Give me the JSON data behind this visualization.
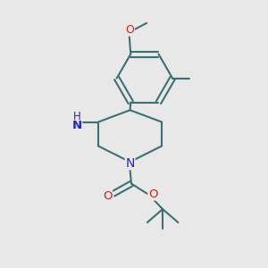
{
  "bg_color": "#e8e8e8",
  "bond_color": "#3d7070",
  "lw": 1.5,
  "N_color": "#2222cc",
  "O_color": "#cc2222",
  "figsize": [
    3.0,
    3.0
  ],
  "dpi": 100,
  "xlim": [
    0,
    10
  ],
  "ylim": [
    0,
    10
  ]
}
